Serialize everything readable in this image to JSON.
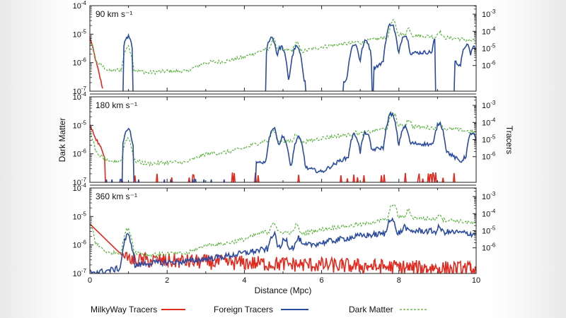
{
  "chart_data": {
    "type": "line",
    "xlabel": "Distance (Mpc)",
    "ylabel_left": "Dark Matter",
    "ylabel_right": "Tracers",
    "xlim": [
      0,
      10
    ],
    "x_ticks": [
      "0",
      "2",
      "4",
      "6",
      "8",
      "10"
    ],
    "left_ticks": [
      "10^-4",
      "10^-5",
      "10^-6",
      "10^-7"
    ],
    "right_ticks": [
      "10^-3",
      "10^-4",
      "10^-5",
      "10^-6"
    ],
    "tick_mantissa": "10",
    "left_exponents": [
      "-4",
      "-5",
      "-6",
      "-7"
    ],
    "right_exponents": [
      "-3",
      "-4",
      "-5",
      "-6"
    ],
    "left_log_range": [
      -7,
      -4
    ],
    "right_log_range": [
      -7.5,
      -2.5
    ],
    "panels": [
      {
        "label": "90 km s⁻¹",
        "velocity": "90"
      },
      {
        "label": "180 km s⁻¹",
        "velocity": "180"
      },
      {
        "label": "360 km s⁻¹",
        "velocity": "360"
      }
    ],
    "legend": {
      "milkyway": "MilkyWay Tracers",
      "foreign": "Foreign Tracers",
      "dark_matter": "Dark Matter"
    },
    "series": [
      {
        "name": "Dark Matter",
        "axis": "left",
        "color": "#4caf2e",
        "style": "dashed",
        "baseline_x": [
          0.1,
          0.5,
          1.0,
          1.5,
          2.0,
          2.5,
          3.0,
          3.5,
          4.0,
          4.5,
          5.0,
          5.5,
          6.0,
          6.5,
          7.0,
          7.5,
          8.0,
          8.5,
          9.0,
          9.5,
          10.0
        ],
        "baseline_log": [
          -5.9,
          -6.3,
          -6.2,
          -6.35,
          -6.3,
          -6.3,
          -6.0,
          -5.95,
          -5.8,
          -5.55,
          -5.55,
          -5.6,
          -5.45,
          -5.35,
          -5.3,
          -5.15,
          -5.0,
          -5.05,
          -5.1,
          -5.15,
          -5.25
        ],
        "peaks": [
          {
            "x": 0.0,
            "log": -5.3
          },
          {
            "x": 0.98,
            "log": -5.45
          },
          {
            "x": 4.75,
            "log": -5.2
          },
          {
            "x": 5.35,
            "log": -5.3
          },
          {
            "x": 6.9,
            "log": -5.25
          },
          {
            "x": 7.2,
            "log": -5.35
          },
          {
            "x": 7.85,
            "log": -4.55
          },
          {
            "x": 8.25,
            "log": -4.8
          },
          {
            "x": 9.05,
            "log": -4.9
          }
        ]
      },
      {
        "name": "Foreign Tracers",
        "axis": "right",
        "color": "#2b4ba0",
        "panels": [
          {
            "cutoff": "above-floor-only",
            "segments": [
              [
                0.88,
                1.1
              ],
              [
                4.55,
                5.58
              ],
              [
                6.55,
                7.3
              ],
              [
                7.35,
                8.95
              ],
              [
                9.45,
                10.0
              ]
            ],
            "baseline_x": [
              4.55,
              5.6,
              6.5,
              7.3,
              8.0,
              9.0,
              10.0
            ],
            "baseline_log": [
              -7.0,
              -6.8,
              -7.0,
              -6.2,
              -5.3,
              -5.2,
              -6.5
            ],
            "peaks": [
              {
                "x": 0.98,
                "log": -4.3
              },
              {
                "x": 4.7,
                "log": -4.35
              },
              {
                "x": 4.95,
                "log": -4.9
              },
              {
                "x": 5.35,
                "log": -4.9
              },
              {
                "x": 6.85,
                "log": -4.75
              },
              {
                "x": 7.15,
                "log": -4.55
              },
              {
                "x": 7.8,
                "log": -3.55
              },
              {
                "x": 8.15,
                "log": -4.2
              },
              {
                "x": 9.0,
                "log": -4.15
              },
              {
                "x": 9.75,
                "log": -4.8
              },
              {
                "x": 9.95,
                "log": -4.9
              }
            ]
          },
          {
            "cutoff": "sparse-left",
            "baseline_x": [
              0.3,
              2.0,
              3.5,
              4.0,
              4.4,
              5.5,
              6.0,
              6.5,
              7.3,
              8.2,
              9.0,
              9.6,
              10.0
            ],
            "baseline_log": [
              -7.4,
              -7.4,
              -7.2,
              -6.8,
              -6.3,
              -6.6,
              -6.9,
              -6.2,
              -5.6,
              -5.2,
              -5.3,
              -6.3,
              -5.3
            ],
            "peaks": [
              {
                "x": 0.98,
                "log": -4.4
              },
              {
                "x": 4.75,
                "log": -4.35
              },
              {
                "x": 5.0,
                "log": -4.85
              },
              {
                "x": 5.4,
                "log": -4.9
              },
              {
                "x": 6.85,
                "log": -4.7
              },
              {
                "x": 7.15,
                "log": -4.6
              },
              {
                "x": 7.8,
                "log": -3.5
              },
              {
                "x": 8.15,
                "log": -4.25
              },
              {
                "x": 9.05,
                "log": -4.05
              },
              {
                "x": 9.9,
                "log": -4.6
              }
            ]
          },
          {
            "cutoff": "continuous",
            "baseline_x": [
              0.3,
              1.5,
              2.5,
              3.5,
              4.0,
              4.5,
              5.5,
              6.5,
              7.0,
              7.5,
              8.5,
              9.5,
              10.0
            ],
            "baseline_log": [
              -7.4,
              -6.9,
              -6.8,
              -6.5,
              -6.3,
              -6.1,
              -5.9,
              -5.5,
              -5.3,
              -5.2,
              -5.0,
              -5.1,
              -5.2
            ],
            "peaks": [
              {
                "x": 0.98,
                "log": -5.3
              },
              {
                "x": 4.75,
                "log": -5.2
              },
              {
                "x": 5.05,
                "log": -5.45
              },
              {
                "x": 5.4,
                "log": -5.45
              },
              {
                "x": 6.85,
                "log": -5.35
              },
              {
                "x": 7.15,
                "log": -5.3
              },
              {
                "x": 7.8,
                "log": -4.25
              },
              {
                "x": 8.15,
                "log": -4.75
              },
              {
                "x": 9.05,
                "log": -4.8
              }
            ]
          }
        ]
      },
      {
        "name": "MilkyWay Tracers",
        "axis": "right",
        "color": "#e3281e",
        "panels": [
          {
            "peak_log": -4.3,
            "decay_mpc": 0.06,
            "noise_extent_mpc": 0.35
          },
          {
            "peak_log": -4.2,
            "decay_mpc": 0.12,
            "noise_extent_mpc": 9.5
          },
          {
            "peak_log": -4.6,
            "decay_mpc": 0.25,
            "noise_extent_mpc": 10.0
          }
        ]
      }
    ]
  }
}
